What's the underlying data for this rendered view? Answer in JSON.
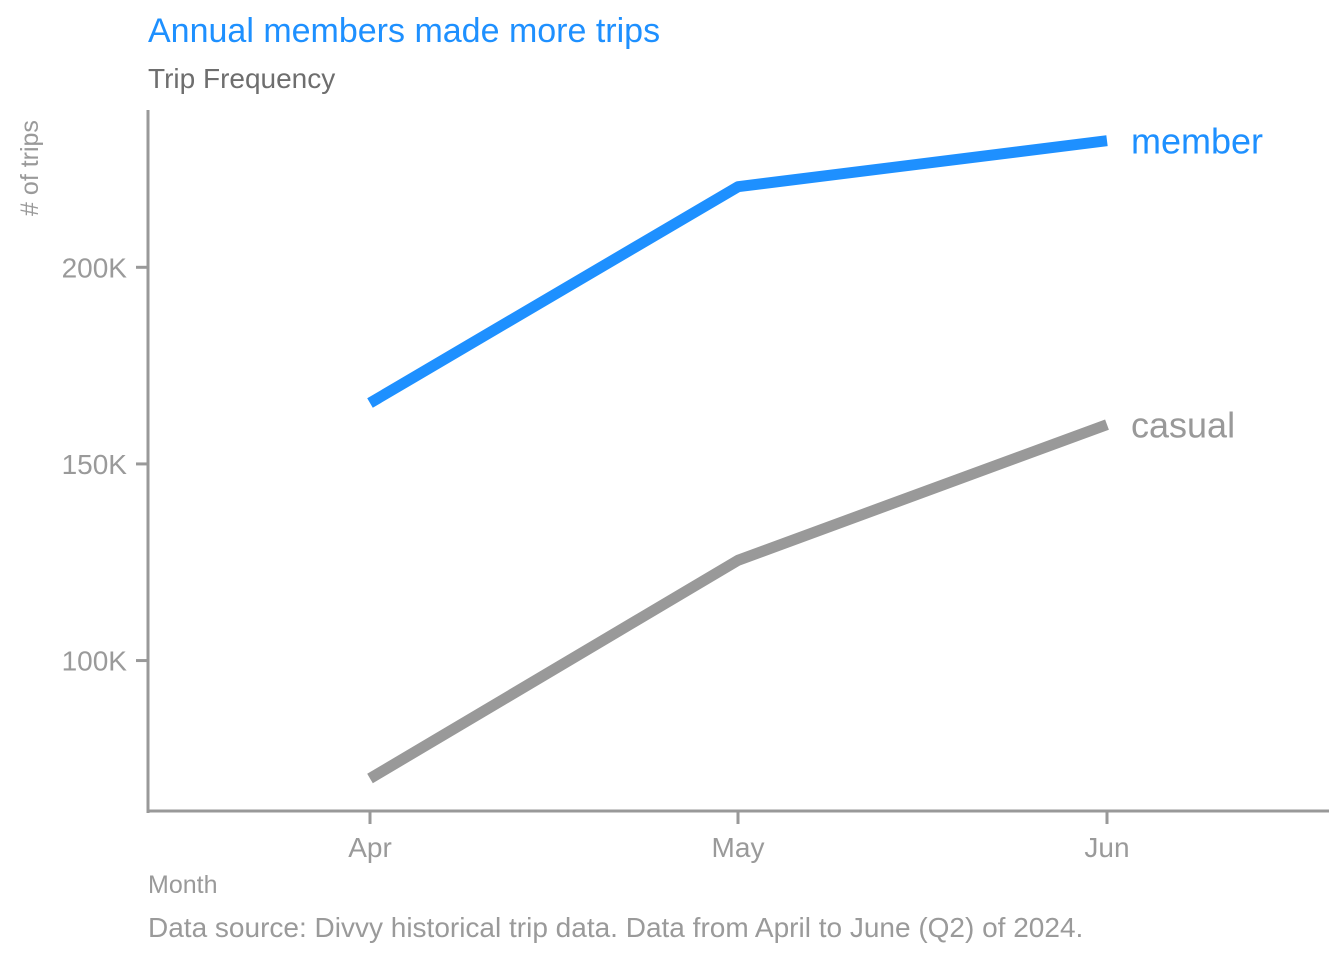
{
  "chart_data": {
    "type": "line",
    "title": "Annual members made more trips",
    "subtitle": "Trip Frequency",
    "xlabel": "Month",
    "ylabel": "# of trips",
    "caption": "Data source: Divvy historical trip data. Data from April to June (Q2) of 2024.",
    "categories": [
      "Apr",
      "May",
      "Jun"
    ],
    "ylim": [
      62000,
      240000
    ],
    "yticks": [
      100000,
      150000,
      200000
    ],
    "ytick_labels": [
      "100K",
      "150K",
      "200K"
    ],
    "grid": false,
    "legend": "direct labels at line ends",
    "series": [
      {
        "name": "member",
        "color": "#1e90ff",
        "values": [
          165500,
          220500,
          232200
        ]
      },
      {
        "name": "casual",
        "color": "#999999",
        "values": [
          70000,
          125500,
          160000
        ]
      }
    ]
  },
  "colors": {
    "accent": "#1e90ff",
    "axis": "#999999",
    "muted_text": "#9a9a9a",
    "subtitle_text": "#6e6e6e"
  }
}
